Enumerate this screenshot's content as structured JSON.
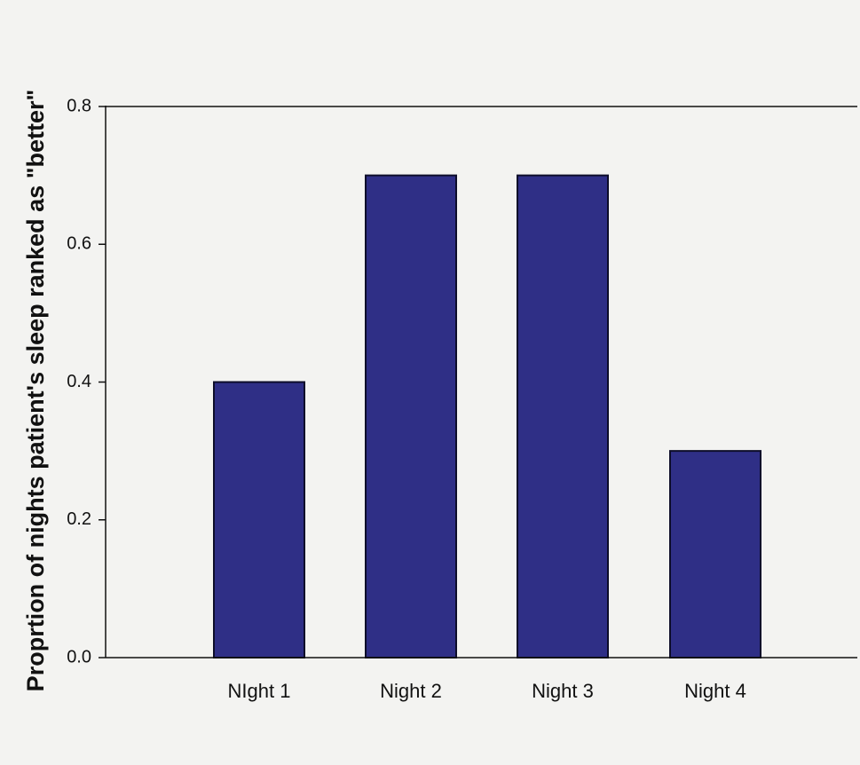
{
  "chart_data": {
    "type": "bar",
    "categories": [
      "NIght 1",
      "Night 2",
      "Night 3",
      "Night 4"
    ],
    "values": [
      0.4,
      0.7,
      0.7,
      0.3
    ],
    "title": "",
    "xlabel": "",
    "ylabel": "Proprtion of nights patient's sleep ranked as \"better\"",
    "ylim": [
      0,
      0.8
    ],
    "yticks": [
      "0.0",
      "0.2",
      "0.4",
      "0.6",
      "0.8"
    ],
    "grid": false,
    "legend": "none",
    "colors": {
      "bar_fill": "#2f2f86",
      "bar_edge": "#0d0d2a",
      "axis": "#111111",
      "background": "#f3f3f1"
    }
  }
}
